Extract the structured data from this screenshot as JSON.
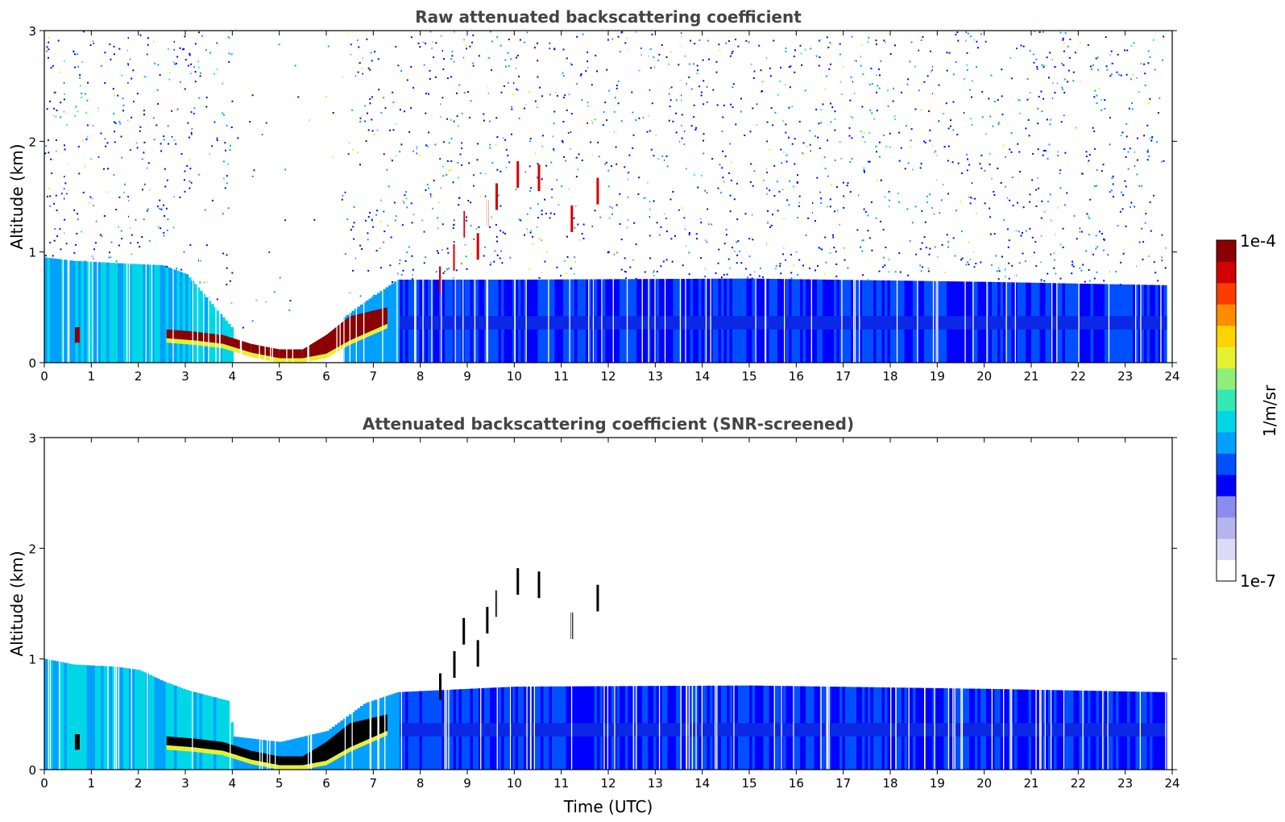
{
  "colors": {
    "colormap": [
      "#ffffff",
      "#dcdcf6",
      "#b4b4ee",
      "#8c8cf0",
      "#0000ff",
      "#0050ff",
      "#00a0ff",
      "#00d7e6",
      "#34e8b4",
      "#8ef07a",
      "#e6f032",
      "#ffd200",
      "#ff8c00",
      "#ff3c00",
      "#d20000",
      "#8b0000"
    ],
    "frame": "#000000",
    "title": "#444444"
  },
  "chart_data": [
    {
      "type": "heatmap",
      "title": "Raw attenuated backscattering coefficient",
      "xlabel": "",
      "ylabel": "Altitude (km)",
      "xlim": [
        0,
        24
      ],
      "ylim": [
        0,
        3
      ],
      "xticks": [
        "0",
        "1",
        "2",
        "3",
        "4",
        "5",
        "6",
        "7",
        "8",
        "9",
        "10",
        "11",
        "12",
        "13",
        "14",
        "15",
        "16",
        "17",
        "18",
        "19",
        "20",
        "21",
        "22",
        "23",
        "24"
      ],
      "yticks": [
        "0",
        "1",
        "2",
        "3"
      ],
      "layer_top_km": [
        [
          0.0,
          0.95
        ],
        [
          0.6,
          0.92
        ],
        [
          1.5,
          0.9
        ],
        [
          2.5,
          0.88
        ],
        [
          3.0,
          0.8
        ],
        [
          4.0,
          0.3
        ],
        [
          5.0,
          0.25
        ],
        [
          6.0,
          0.3
        ],
        [
          6.8,
          0.55
        ],
        [
          7.5,
          0.75
        ],
        [
          10.0,
          0.75
        ],
        [
          15.0,
          0.76
        ],
        [
          20.0,
          0.73
        ],
        [
          23.8,
          0.7
        ]
      ],
      "strong_layer": [
        {
          "t": 0.65,
          "alt_lo": 0.18,
          "alt_hi": 0.32
        },
        {
          "t": 2.6,
          "alt_lo": 0.22,
          "alt_hi": 0.3
        },
        {
          "t": 3.2,
          "alt_lo": 0.2,
          "alt_hi": 0.28
        },
        {
          "t": 3.8,
          "alt_lo": 0.17,
          "alt_hi": 0.25
        },
        {
          "t": 4.4,
          "alt_lo": 0.09,
          "alt_hi": 0.17
        },
        {
          "t": 5.0,
          "alt_lo": 0.04,
          "alt_hi": 0.12
        },
        {
          "t": 5.5,
          "alt_lo": 0.04,
          "alt_hi": 0.12
        },
        {
          "t": 6.0,
          "alt_lo": 0.08,
          "alt_hi": 0.25
        },
        {
          "t": 6.5,
          "alt_lo": 0.2,
          "alt_hi": 0.42
        },
        {
          "t": 7.3,
          "alt_lo": 0.35,
          "alt_hi": 0.5
        }
      ],
      "cloud_streaks": [
        {
          "t": 8.4,
          "alt": 0.75
        },
        {
          "t": 8.7,
          "alt": 0.95
        },
        {
          "t": 8.9,
          "alt": 1.25
        },
        {
          "t": 9.2,
          "alt": 1.05
        },
        {
          "t": 9.4,
          "alt": 1.35
        },
        {
          "t": 9.6,
          "alt": 1.5
        },
        {
          "t": 10.05,
          "alt": 1.7
        },
        {
          "t": 10.5,
          "alt": 1.67
        },
        {
          "t": 11.2,
          "alt": 1.3
        },
        {
          "t": 11.75,
          "alt": 1.55
        }
      ],
      "data_gap_hours": [
        [
          4.0,
          6.3
        ]
      ]
    },
    {
      "type": "heatmap",
      "title": "Attenuated backscattering coefficient (SNR-screened)",
      "xlabel": "Time (UTC)",
      "ylabel": "Altitude (km)",
      "xlim": [
        0,
        24
      ],
      "ylim": [
        0,
        3
      ],
      "xticks": [
        "0",
        "1",
        "2",
        "3",
        "4",
        "5",
        "6",
        "7",
        "8",
        "9",
        "10",
        "11",
        "12",
        "13",
        "14",
        "15",
        "16",
        "17",
        "18",
        "19",
        "20",
        "21",
        "22",
        "23",
        "24"
      ],
      "yticks": [
        "0",
        "1",
        "2",
        "3"
      ],
      "layer_top_km": [
        [
          0.0,
          1.0
        ],
        [
          0.6,
          0.95
        ],
        [
          1.5,
          0.93
        ],
        [
          2.0,
          0.9
        ],
        [
          2.5,
          0.8
        ],
        [
          3.0,
          0.72
        ],
        [
          3.9,
          0.62
        ],
        [
          4.0,
          0.3
        ],
        [
          5.0,
          0.25
        ],
        [
          6.0,
          0.35
        ],
        [
          6.8,
          0.6
        ],
        [
          7.5,
          0.7
        ],
        [
          10.0,
          0.75
        ],
        [
          15.0,
          0.76
        ],
        [
          20.0,
          0.73
        ],
        [
          23.8,
          0.7
        ]
      ],
      "strong_layer": [
        {
          "t": 0.65,
          "alt_lo": 0.18,
          "alt_hi": 0.32
        },
        {
          "t": 2.6,
          "alt_lo": 0.22,
          "alt_hi": 0.3
        },
        {
          "t": 3.2,
          "alt_lo": 0.2,
          "alt_hi": 0.28
        },
        {
          "t": 3.8,
          "alt_lo": 0.17,
          "alt_hi": 0.25
        },
        {
          "t": 4.4,
          "alt_lo": 0.09,
          "alt_hi": 0.17
        },
        {
          "t": 5.0,
          "alt_lo": 0.04,
          "alt_hi": 0.12
        },
        {
          "t": 5.5,
          "alt_lo": 0.04,
          "alt_hi": 0.12
        },
        {
          "t": 6.0,
          "alt_lo": 0.08,
          "alt_hi": 0.25
        },
        {
          "t": 6.5,
          "alt_lo": 0.2,
          "alt_hi": 0.42
        },
        {
          "t": 7.3,
          "alt_lo": 0.35,
          "alt_hi": 0.5
        }
      ],
      "cloud_streaks": [
        {
          "t": 8.4,
          "alt": 0.75
        },
        {
          "t": 8.7,
          "alt": 0.95
        },
        {
          "t": 8.9,
          "alt": 1.25
        },
        {
          "t": 9.2,
          "alt": 1.05
        },
        {
          "t": 9.4,
          "alt": 1.35
        },
        {
          "t": 9.6,
          "alt": 1.5
        },
        {
          "t": 10.05,
          "alt": 1.7
        },
        {
          "t": 10.5,
          "alt": 1.67
        },
        {
          "t": 11.2,
          "alt": 1.3
        },
        {
          "t": 11.75,
          "alt": 1.55
        }
      ],
      "data_gap_hours": []
    }
  ],
  "colorbar": {
    "label": "1/m/sr",
    "max_label": "1e-4",
    "min_label": "1e-7",
    "range": [
      1e-07,
      0.0001
    ],
    "scale": "log"
  }
}
